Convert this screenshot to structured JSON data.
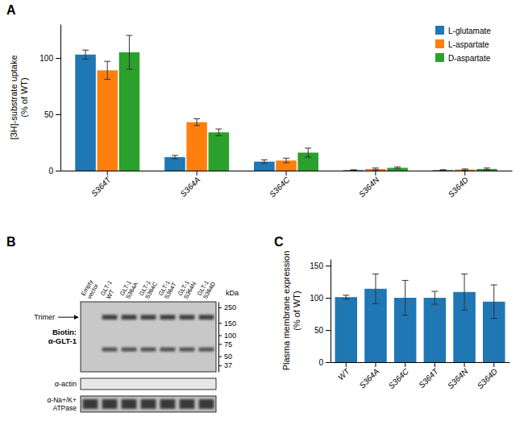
{
  "chart_data": [
    {
      "type": "bar",
      "title": "A",
      "categories": [
        "S364T",
        "S364A",
        "S364C",
        "S364N",
        "S364D"
      ],
      "series": [
        {
          "name": "L-glutamate",
          "values": [
            103,
            12,
            8,
            0.5,
            0.5
          ],
          "errors": [
            4,
            1.5,
            1.5,
            0.3,
            0.3
          ]
        },
        {
          "name": "L-aspartate",
          "values": [
            89,
            43,
            9,
            1.5,
            1.0
          ],
          "errors": [
            8,
            3,
            2,
            0.8,
            0.5
          ]
        },
        {
          "name": "D-aspartate",
          "values": [
            105,
            34,
            16,
            2.5,
            1.5
          ],
          "errors": [
            15,
            3,
            4,
            0.8,
            0.8
          ]
        }
      ],
      "ylabel": "[3H]-substrate uptake\n(% of WT)",
      "ylim": [
        0,
        130
      ],
      "yticks": [
        0,
        50,
        100
      ],
      "legend": "upper right"
    },
    {
      "type": "blot",
      "title": "B",
      "categories": [
        "Empty\nvector",
        "GLT-1\nWT",
        "GLT-1\nS364A",
        "GLT-1\nS364C",
        "GLT-1\nS364T",
        "GLT-1\nS364N",
        "GLT-1\nS364D"
      ],
      "ylabel": "kDa",
      "log": "y",
      "ylim": [
        30,
        300
      ],
      "yticks": [
        250,
        150,
        100,
        75,
        50,
        37
      ],
      "annotations": [
        "Trimer",
        "Biotin:\nα-GLT-1",
        "α-actin",
        "α-Na+/K+\nATPase"
      ]
    },
    {
      "type": "bar",
      "title": "C",
      "categories": [
        "WT",
        "S364A",
        "S364C",
        "S364T",
        "S364N",
        "S364D"
      ],
      "values": [
        101,
        114,
        100,
        100,
        109,
        94
      ],
      "errors": [
        3,
        23,
        27,
        10,
        28,
        26
      ],
      "ylabel": "Plasma membrane expression\n(% of WT)",
      "ylim": [
        0,
        160
      ],
      "yticks": [
        0,
        50,
        100,
        150
      ]
    }
  ]
}
